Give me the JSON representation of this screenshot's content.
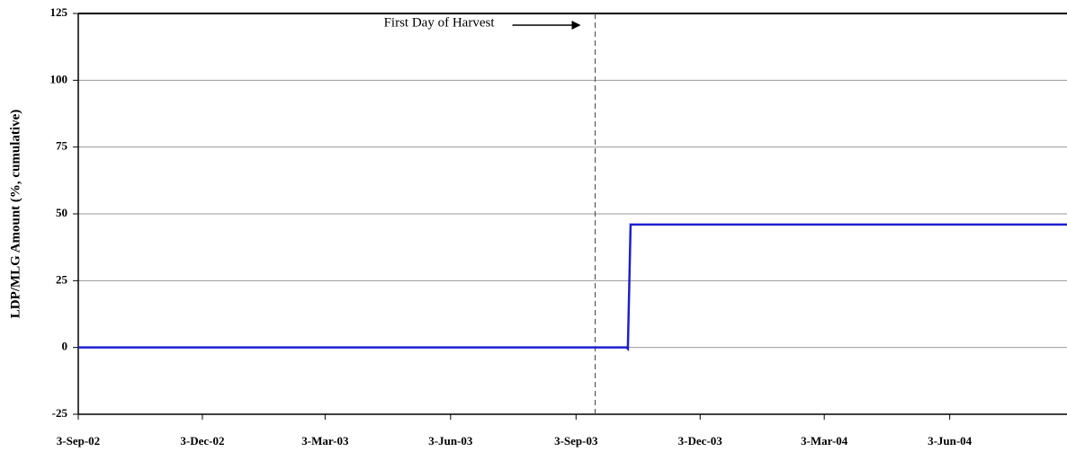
{
  "chart_data": {
    "type": "line",
    "ylabel": "LDP/MLG Amount  (%, cumulative)",
    "x": [
      "2002-09-03",
      "2003-10-10",
      "2003-10-11",
      "2003-10-13",
      "2004-08-28"
    ],
    "series": [
      {
        "name": "LDP/MLG Amount",
        "color": "#1f1fd0",
        "values": [
          0,
          0,
          -0.5,
          46,
          46
        ]
      }
    ],
    "xlim": [
      "2002-09-03",
      "2004-08-28"
    ],
    "xticks": [
      {
        "value": "2002-09-03",
        "label": "3-Sep-02"
      },
      {
        "value": "2002-12-03",
        "label": "3-Dec-02"
      },
      {
        "value": "2003-03-03",
        "label": "3-Mar-03"
      },
      {
        "value": "2003-06-03",
        "label": "3-Jun-03"
      },
      {
        "value": "2003-09-03",
        "label": "3-Sep-03"
      },
      {
        "value": "2003-12-03",
        "label": "3-Dec-03"
      },
      {
        "value": "2004-03-03",
        "label": "3-Mar-04"
      },
      {
        "value": "2004-06-03",
        "label": "3-Jun-04"
      }
    ],
    "ylim": [
      -25,
      125
    ],
    "yticks": [
      -25,
      0,
      25,
      50,
      75,
      100,
      125
    ],
    "grid": true,
    "annotation": {
      "text": "First Day of Harvest",
      "x": "2003-09-17"
    }
  }
}
